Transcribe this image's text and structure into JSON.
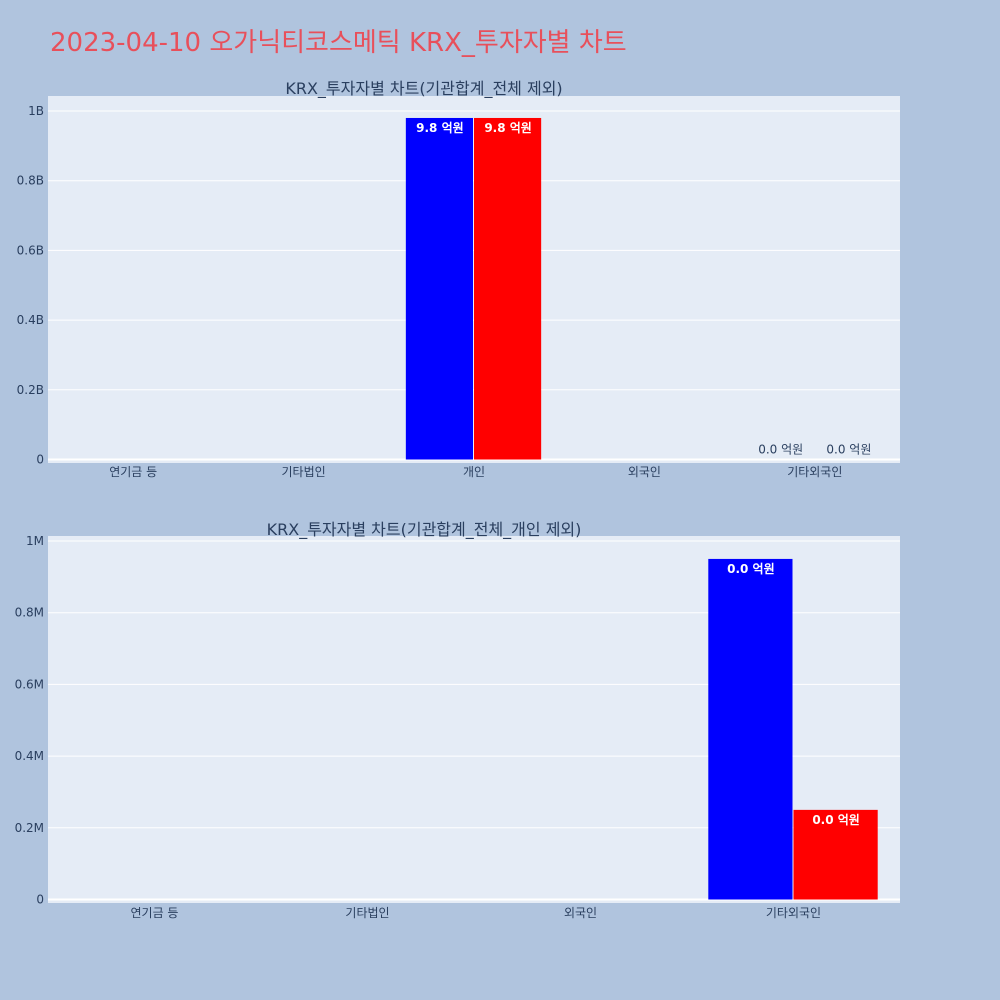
{
  "page_title": "2023-04-10 오가닉티코스메틱 KRX_투자자별 차트",
  "chart_data": [
    {
      "type": "bar",
      "title": "KRX_투자자별 차트(기관합계_전체 제외)",
      "categories": [
        "연기금 등",
        "기타법인",
        "개인",
        "외국인",
        "기타외국인"
      ],
      "series": [
        {
          "color": "#0000ff",
          "values": [
            0,
            0,
            980000000,
            0,
            0
          ],
          "labels": [
            "",
            "",
            "9.8 억원",
            "",
            "0.0 억원"
          ]
        },
        {
          "color": "#ff0000",
          "values": [
            0,
            0,
            980000000,
            0,
            0
          ],
          "labels": [
            "",
            "",
            "9.8 억원",
            "",
            "0.0 억원"
          ]
        }
      ],
      "ylim": [
        0,
        1000000000
      ],
      "yticks": [
        0,
        200000000,
        400000000,
        600000000,
        800000000,
        1000000000
      ],
      "ytick_labels": [
        "0",
        "0.2B",
        "0.4B",
        "0.6B",
        "0.8B",
        "1B"
      ],
      "grid": true
    },
    {
      "type": "bar",
      "title": "KRX_투자자별 차트(기관합계_전체_개인 제외)",
      "categories": [
        "연기금 등",
        "기타법인",
        "외국인",
        "기타외국인"
      ],
      "series": [
        {
          "color": "#0000ff",
          "values": [
            0,
            0,
            0,
            950000
          ],
          "labels": [
            "",
            "",
            "",
            "0.0 억원"
          ]
        },
        {
          "color": "#ff0000",
          "values": [
            0,
            0,
            0,
            250000
          ],
          "labels": [
            "",
            "",
            "",
            "0.0 억원"
          ]
        }
      ],
      "ylim": [
        0,
        1000000
      ],
      "yticks": [
        0,
        200000,
        400000,
        600000,
        800000,
        1000000
      ],
      "ytick_labels": [
        "0",
        "0.2M",
        "0.4M",
        "0.6M",
        "0.8M",
        "1M"
      ],
      "grid": true
    }
  ],
  "colors": {
    "plot_bg": "#e5ecf6",
    "page_bg": "#b0c4de",
    "title": "#e8505b",
    "text": "#2a3f5f"
  }
}
